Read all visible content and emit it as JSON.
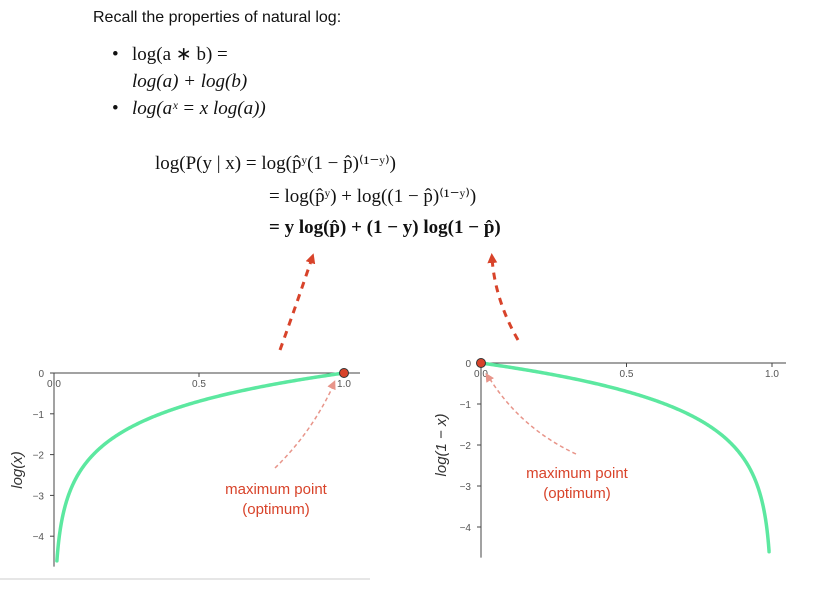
{
  "intro": "Recall the properties of natural log:",
  "bullets": [
    {
      "marker": "•",
      "line1": "log(a ∗ b) =",
      "line2": "log(a) + log(b)"
    },
    {
      "marker": "•",
      "line1": "log(aˣ = x log(a))",
      "line2": ""
    }
  ],
  "derivation": {
    "line1": "log(P(y | x) = log(p̂ʸ(1 − p̂)⁽¹⁻ʸ⁾)",
    "line2": "= log(p̂ʸ) + log((1 − p̂)⁽¹⁻ʸ⁾)",
    "line3": "= y log(p̂) + (1 − y) log(1 − p̂)"
  },
  "annotation_color": "#d8432a",
  "curve_color": "#5ce8a0",
  "chart_data": [
    {
      "type": "line",
      "ylabel": "log(x)",
      "function": "log(x)",
      "x_ticks": [
        "0.0",
        "0.5",
        "1.0"
      ],
      "y_ticks": [
        "0",
        "−1",
        "−2",
        "−3",
        "−4"
      ],
      "xlim": [
        0,
        1
      ],
      "ylim": [
        -4.6,
        0
      ],
      "series": [
        {
          "x_range": [
            0.01,
            1.0
          ]
        }
      ],
      "maximum_point": {
        "x": 1.0,
        "y": 0
      },
      "annotation": {
        "line1": "maximum point",
        "line2": "(optimum)"
      }
    },
    {
      "type": "line",
      "ylabel": "log(1 − x)",
      "function": "log(1-x)",
      "x_ticks": [
        "0.0",
        "0.5",
        "1.0"
      ],
      "y_ticks": [
        "0",
        "−1",
        "−2",
        "−3",
        "−4"
      ],
      "xlim": [
        0,
        1
      ],
      "ylim": [
        -4.6,
        0
      ],
      "series": [
        {
          "x_range": [
            0.0,
            0.99
          ]
        }
      ],
      "maximum_point": {
        "x": 0.0,
        "y": 0
      },
      "annotation": {
        "line1": "maximum point",
        "line2": "(optimum)"
      }
    }
  ]
}
